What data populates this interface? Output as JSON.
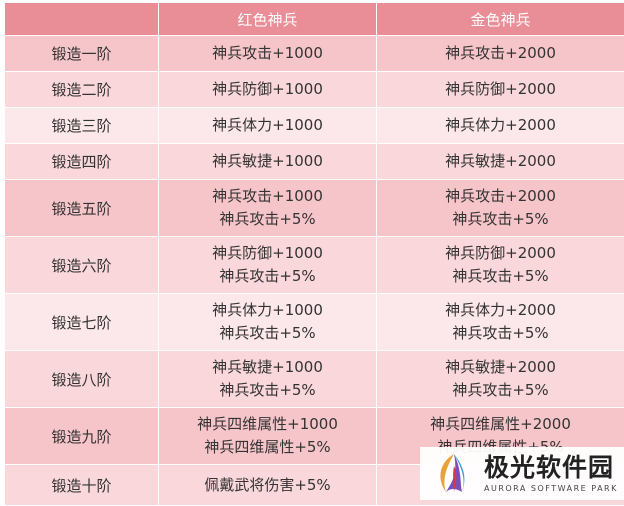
{
  "table": {
    "headers": [
      "",
      "红色神兵",
      "金色神兵"
    ],
    "rows": [
      {
        "label": "锻造一阶",
        "red": [
          "神兵攻击+1000"
        ],
        "gold": [
          "神兵攻击+2000"
        ],
        "shade": "dark"
      },
      {
        "label": "锻造二阶",
        "red": [
          "神兵防御+1000"
        ],
        "gold": [
          "神兵防御+2000"
        ],
        "shade": "mid"
      },
      {
        "label": "锻造三阶",
        "red": [
          "神兵体力+1000"
        ],
        "gold": [
          "神兵体力+2000"
        ],
        "shade": "light"
      },
      {
        "label": "锻造四阶",
        "red": [
          "神兵敏捷+1000"
        ],
        "gold": [
          "神兵敏捷+2000"
        ],
        "shade": "mid"
      },
      {
        "label": "锻造五阶",
        "red": [
          "神兵攻击+1000",
          "神兵攻击+5%"
        ],
        "gold": [
          "神兵攻击+2000",
          "神兵攻击+5%"
        ],
        "shade": "dark"
      },
      {
        "label": "锻造六阶",
        "red": [
          "神兵防御+1000",
          "神兵攻击+5%"
        ],
        "gold": [
          "神兵防御+2000",
          "神兵攻击+5%"
        ],
        "shade": "mid"
      },
      {
        "label": "锻造七阶",
        "red": [
          "神兵体力+1000",
          "神兵攻击+5%"
        ],
        "gold": [
          "神兵体力+2000",
          "神兵攻击+5%"
        ],
        "shade": "light"
      },
      {
        "label": "锻造八阶",
        "red": [
          "神兵敏捷+1000",
          "神兵攻击+5%"
        ],
        "gold": [
          "神兵敏捷+2000",
          "神兵攻击+5%"
        ],
        "shade": "mid"
      },
      {
        "label": "锻造九阶",
        "red": [
          "神兵四维属性+1000",
          "神兵四维属性+5%"
        ],
        "gold": [
          "神兵四维属性+2000",
          "神兵四维属性+5%"
        ],
        "shade": "dark"
      },
      {
        "label": "锻造十阶",
        "red": [
          "佩戴武将伤害+5%"
        ],
        "gold": [
          ""
        ],
        "shade": "mid"
      }
    ]
  },
  "watermark": {
    "name_cn": "极光软件园",
    "name_en": "AURORA SOFTWARE PARK"
  },
  "colors": {
    "header_bg": "#e98d97",
    "row_dark": "#f6c5ca",
    "row_mid": "#f9d7db",
    "row_light": "#fce8ea"
  }
}
